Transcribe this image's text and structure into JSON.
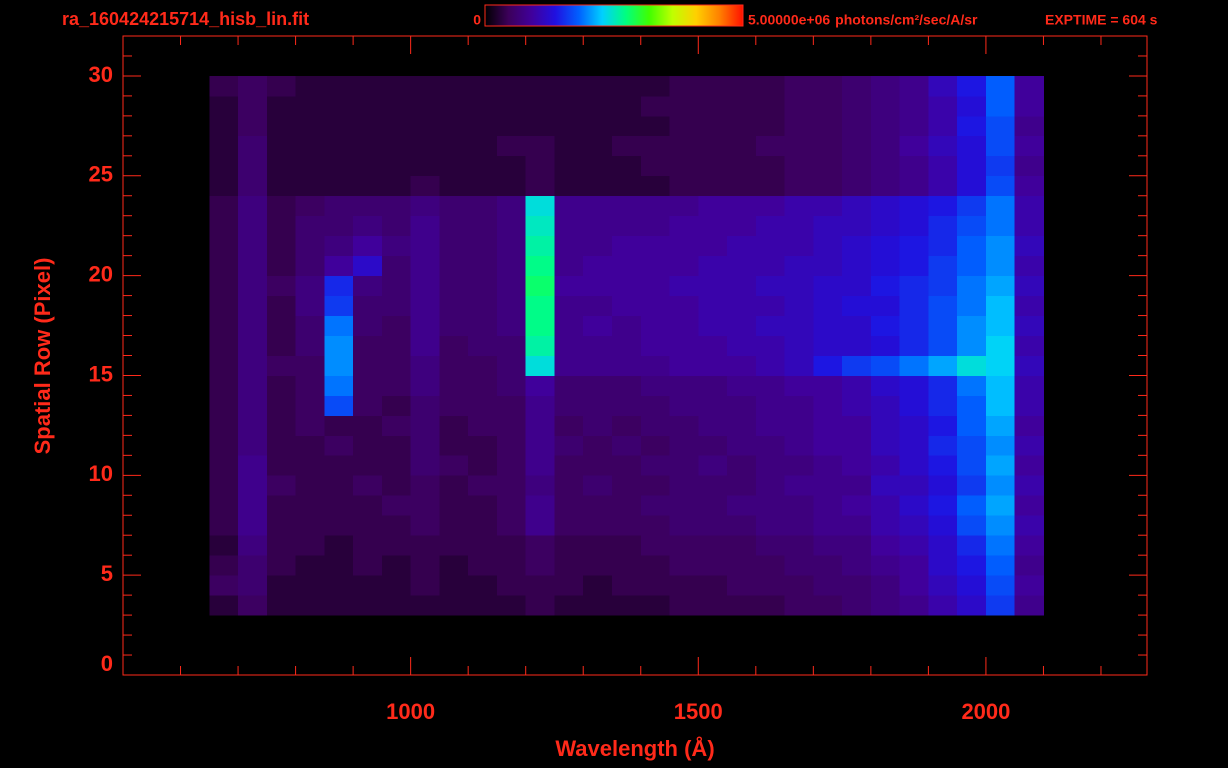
{
  "chart_data": {
    "type": "heatmap",
    "title": "ra_160424215714_hisb_lin.fit",
    "annotation": "EXPTIME = 604 s",
    "x_label": "Wavelength (Å)",
    "y_label": "Spatial Row (Pixel)",
    "colorbar_unit": "photons/cm²/sec/A/sr",
    "zlim": [
      0,
      5000000
    ],
    "colorbar_ticks": [
      0,
      {
        "value": 5000000,
        "label": "5.00000e+06"
      }
    ],
    "colorscale": [
      "#000000",
      "#3c005a",
      "#40009c",
      "#2010e0",
      "#0060ff",
      "#00d0ff",
      "#00ff80",
      "#40ff00",
      "#c0ff00",
      "#ffd000",
      "#ff8000",
      "#ff1000"
    ],
    "axis_color": "#ff2a1a",
    "xlim": [
      500,
      2280
    ],
    "ylim": [
      0,
      32
    ],
    "xticks": [
      1000,
      1500,
      2000
    ],
    "yticks": [
      0,
      5,
      10,
      15,
      20,
      25,
      30
    ],
    "xminorticks": [
      600,
      700,
      800,
      900,
      1100,
      1200,
      1300,
      1400,
      1600,
      1700,
      1800,
      1900,
      2100,
      2200
    ],
    "yminorticks": [
      1,
      2,
      3,
      4,
      6,
      7,
      8,
      9,
      11,
      12,
      13,
      14,
      16,
      17,
      18,
      19,
      21,
      22,
      23,
      24,
      26,
      27,
      28,
      29,
      31
    ],
    "x_bins": [
      650,
      700,
      750,
      800,
      850,
      900,
      950,
      1000,
      1050,
      1100,
      1150,
      1200,
      1250,
      1300,
      1350,
      1400,
      1450,
      1500,
      1550,
      1600,
      1650,
      1700,
      1750,
      1800,
      1850,
      1900,
      1950,
      2000,
      2050,
      2100
    ],
    "y_bins": [
      3,
      4,
      5,
      6,
      7,
      8,
      9,
      10,
      11,
      12,
      13,
      14,
      15,
      16,
      17,
      18,
      19,
      20,
      21,
      22,
      23,
      24,
      25,
      26,
      27,
      28,
      29,
      30
    ],
    "values": [
      [
        300000.0,
        500000.0,
        300000.0,
        300000.0,
        300000.0,
        300000.0,
        300000.0,
        300000.0,
        300000.0,
        300000.0,
        300000.0,
        400000.0,
        300000.0,
        300000.0,
        300000.0,
        300000.0,
        400000.0,
        400000.0,
        400000.0,
        400000.0,
        500000.0,
        500000.0,
        600000.0,
        700000.0,
        800000.0,
        1000000.0,
        1200000.0,
        1600000.0,
        800000.0
      ],
      [
        500000.0,
        600000.0,
        300000.0,
        300000.0,
        300000.0,
        300000.0,
        300000.0,
        400000.0,
        300000.0,
        300000.0,
        400000.0,
        400000.0,
        400000.0,
        300000.0,
        400000.0,
        400000.0,
        400000.0,
        400000.0,
        500000.0,
        500000.0,
        500000.0,
        600000.0,
        600000.0,
        700000.0,
        900000.0,
        1100000.0,
        1300000.0,
        1700000.0,
        900000.0
      ],
      [
        400000.0,
        600000.0,
        400000.0,
        300000.0,
        300000.0,
        400000.0,
        300000.0,
        400000.0,
        300000.0,
        400000.0,
        400000.0,
        500000.0,
        400000.0,
        400000.0,
        400000.0,
        400000.0,
        500000.0,
        500000.0,
        500000.0,
        500000.0,
        600000.0,
        600000.0,
        700000.0,
        800000.0,
        900000.0,
        1200000.0,
        1400000.0,
        1800000.0,
        800000.0
      ],
      [
        300000.0,
        700000.0,
        400000.0,
        400000.0,
        300000.0,
        400000.0,
        400000.0,
        400000.0,
        400000.0,
        400000.0,
        400000.0,
        500000.0,
        400000.0,
        400000.0,
        400000.0,
        500000.0,
        500000.0,
        500000.0,
        500000.0,
        600000.0,
        600000.0,
        700000.0,
        700000.0,
        900000.0,
        1000000.0,
        1200000.0,
        1500000.0,
        1900000.0,
        900000.0
      ],
      [
        400000.0,
        800000.0,
        400000.0,
        400000.0,
        400000.0,
        400000.0,
        400000.0,
        500000.0,
        400000.0,
        400000.0,
        500000.0,
        800000.0,
        500000.0,
        500000.0,
        500000.0,
        500000.0,
        600000.0,
        600000.0,
        600000.0,
        700000.0,
        700000.0,
        800000.0,
        800000.0,
        1000000.0,
        1100000.0,
        1300000.0,
        1700000.0,
        2000000.0,
        1000000.0
      ],
      [
        400000.0,
        800000.0,
        400000.0,
        400000.0,
        400000.0,
        400000.0,
        500000.0,
        500000.0,
        400000.0,
        400000.0,
        500000.0,
        800000.0,
        500000.0,
        500000.0,
        500000.0,
        600000.0,
        600000.0,
        600000.0,
        700000.0,
        700000.0,
        700000.0,
        800000.0,
        900000.0,
        1000000.0,
        1200000.0,
        1400000.0,
        1800000.0,
        2100000.0,
        900000.0
      ],
      [
        400000.0,
        800000.0,
        500000.0,
        400000.0,
        400000.0,
        500000.0,
        400000.0,
        500000.0,
        400000.0,
        500000.0,
        500000.0,
        700000.0,
        500000.0,
        600000.0,
        500000.0,
        500000.0,
        600000.0,
        600000.0,
        600000.0,
        700000.0,
        800000.0,
        800000.0,
        800000.0,
        1100000.0,
        1100000.0,
        1300000.0,
        1600000.0,
        2000000.0,
        1000000.0
      ],
      [
        400000.0,
        800000.0,
        400000.0,
        400000.0,
        400000.0,
        400000.0,
        400000.0,
        600000.0,
        500000.0,
        400000.0,
        500000.0,
        800000.0,
        500000.0,
        500000.0,
        500000.0,
        600000.0,
        600000.0,
        700000.0,
        600000.0,
        700000.0,
        700000.0,
        800000.0,
        900000.0,
        1000000.0,
        1200000.0,
        1400000.0,
        1700000.0,
        2100000.0,
        900000.0
      ],
      [
        400000.0,
        700000.0,
        400000.0,
        400000.0,
        500000.0,
        400000.0,
        400000.0,
        600000.0,
        400000.0,
        400000.0,
        500000.0,
        800000.0,
        600000.0,
        500000.0,
        600000.0,
        500000.0,
        600000.0,
        600000.0,
        700000.0,
        700000.0,
        800000.0,
        900000.0,
        900000.0,
        1100000.0,
        1200000.0,
        1500000.0,
        1700000.0,
        2000000.0,
        1000000.0
      ],
      [
        400000.0,
        700000.0,
        400000.0,
        500000.0,
        400000.0,
        400000.0,
        500000.0,
        600000.0,
        400000.0,
        500000.0,
        500000.0,
        800000.0,
        500000.0,
        600000.0,
        500000.0,
        600000.0,
        600000.0,
        700000.0,
        700000.0,
        800000.0,
        800000.0,
        900000.0,
        900000.0,
        1100000.0,
        1200000.0,
        1400000.0,
        1800000.0,
        2100000.0,
        900000.0
      ],
      [
        400000.0,
        700000.0,
        400000.0,
        500000.0,
        1700000.0,
        500000.0,
        400000.0,
        600000.0,
        500000.0,
        500000.0,
        500000.0,
        800000.0,
        600000.0,
        600000.0,
        600000.0,
        600000.0,
        700000.0,
        700000.0,
        700000.0,
        800000.0,
        800000.0,
        900000.0,
        1000000.0,
        1100000.0,
        1300000.0,
        1500000.0,
        1800000.0,
        2200000.0,
        1000000.0
      ],
      [
        400000.0,
        700000.0,
        400000.0,
        500000.0,
        1900000.0,
        500000.0,
        500000.0,
        700000.0,
        500000.0,
        500000.0,
        600000.0,
        900000.0,
        600000.0,
        600000.0,
        600000.0,
        700000.0,
        700000.0,
        700000.0,
        800000.0,
        800000.0,
        900000.0,
        900000.0,
        1000000.0,
        1200000.0,
        1300000.0,
        1500000.0,
        1900000.0,
        2200000.0,
        1000000.0
      ],
      [
        400000.0,
        700000.0,
        500000.0,
        500000.0,
        2000000.0,
        500000.0,
        500000.0,
        700000.0,
        500000.0,
        500000.0,
        600000.0,
        2400000.0,
        800000.0,
        800000.0,
        800000.0,
        800000.0,
        900000.0,
        900000.0,
        900000.0,
        1000000.0,
        1100000.0,
        1400000.0,
        1600000.0,
        1700000.0,
        1900000.0,
        2100000.0,
        2400000.0,
        2300000.0,
        1100000.0
      ],
      [
        400000.0,
        700000.0,
        400000.0,
        600000.0,
        2000000.0,
        500000.0,
        500000.0,
        800000.0,
        500000.0,
        600000.0,
        600000.0,
        2600000.0,
        800000.0,
        800000.0,
        800000.0,
        900000.0,
        900000.0,
        900000.0,
        1000000.0,
        1000000.0,
        1100000.0,
        1200000.0,
        1200000.0,
        1300000.0,
        1500000.0,
        1700000.0,
        2000000.0,
        2300000.0,
        1000000.0
      ],
      [
        400000.0,
        700000.0,
        400000.0,
        600000.0,
        1900000.0,
        600000.0,
        500000.0,
        800000.0,
        600000.0,
        600000.0,
        700000.0,
        2700000.0,
        800000.0,
        900000.0,
        800000.0,
        900000.0,
        900000.0,
        1000000.0,
        1000000.0,
        1100000.0,
        1100000.0,
        1200000.0,
        1200000.0,
        1400000.0,
        1500000.0,
        1700000.0,
        2000000.0,
        2200000.0,
        1100000.0
      ],
      [
        400000.0,
        700000.0,
        400000.0,
        700000.0,
        1600000.0,
        600000.0,
        600000.0,
        800000.0,
        600000.0,
        600000.0,
        700000.0,
        2700000.0,
        800000.0,
        800000.0,
        900000.0,
        900000.0,
        900000.0,
        1000000.0,
        1000000.0,
        1000000.0,
        1100000.0,
        1200000.0,
        1300000.0,
        1300000.0,
        1500000.0,
        1700000.0,
        1900000.0,
        2200000.0,
        1000000.0
      ],
      [
        400000.0,
        700000.0,
        500000.0,
        700000.0,
        1500000.0,
        700000.0,
        600000.0,
        800000.0,
        600000.0,
        600000.0,
        700000.0,
        2800000.0,
        900000.0,
        900000.0,
        900000.0,
        900000.0,
        1000000.0,
        1000000.0,
        1000000.0,
        1100000.0,
        1100000.0,
        1200000.0,
        1200000.0,
        1400000.0,
        1500000.0,
        1600000.0,
        1900000.0,
        2100000.0,
        1100000.0
      ],
      [
        400000.0,
        700000.0,
        400000.0,
        600000.0,
        900000.0,
        1200000.0,
        600000.0,
        800000.0,
        600000.0,
        600000.0,
        700000.0,
        2700000.0,
        800000.0,
        900000.0,
        900000.0,
        900000.0,
        900000.0,
        1000000.0,
        1000000.0,
        1000000.0,
        1100000.0,
        1100000.0,
        1200000.0,
        1300000.0,
        1400000.0,
        1600000.0,
        1800000.0,
        2000000.0,
        1000000.0
      ],
      [
        400000.0,
        700000.0,
        400000.0,
        600000.0,
        700000.0,
        900000.0,
        700000.0,
        800000.0,
        600000.0,
        600000.0,
        700000.0,
        2600000.0,
        800000.0,
        800000.0,
        900000.0,
        900000.0,
        900000.0,
        900000.0,
        1000000.0,
        1000000.0,
        1000000.0,
        1100000.0,
        1200000.0,
        1300000.0,
        1400000.0,
        1500000.0,
        1800000.0,
        2000000.0,
        1100000.0
      ],
      [
        400000.0,
        700000.0,
        400000.0,
        600000.0,
        600000.0,
        700000.0,
        600000.0,
        800000.0,
        600000.0,
        600000.0,
        700000.0,
        2500000.0,
        800000.0,
        800000.0,
        800000.0,
        800000.0,
        900000.0,
        900000.0,
        900000.0,
        1000000.0,
        1000000.0,
        1100000.0,
        1100000.0,
        1200000.0,
        1300000.0,
        1500000.0,
        1700000.0,
        1900000.0,
        1000000.0
      ],
      [
        400000.0,
        700000.0,
        400000.0,
        500000.0,
        600000.0,
        600000.0,
        600000.0,
        700000.0,
        600000.0,
        600000.0,
        700000.0,
        2400000.0,
        800000.0,
        800000.0,
        800000.0,
        800000.0,
        800000.0,
        900000.0,
        900000.0,
        900000.0,
        1000000.0,
        1000000.0,
        1100000.0,
        1200000.0,
        1300000.0,
        1400000.0,
        1600000.0,
        1900000.0,
        1000000.0
      ],
      [
        300000.0,
        600000.0,
        300000.0,
        300000.0,
        300000.0,
        300000.0,
        300000.0,
        400000.0,
        300000.0,
        300000.0,
        300000.0,
        400000.0,
        300000.0,
        300000.0,
        300000.0,
        300000.0,
        400000.0,
        400000.0,
        400000.0,
        400000.0,
        500000.0,
        500000.0,
        600000.0,
        700000.0,
        800000.0,
        1000000.0,
        1300000.0,
        1700000.0,
        900000.0
      ],
      [
        300000.0,
        600000.0,
        300000.0,
        300000.0,
        300000.0,
        300000.0,
        300000.0,
        300000.0,
        300000.0,
        300000.0,
        300000.0,
        400000.0,
        300000.0,
        300000.0,
        300000.0,
        400000.0,
        400000.0,
        400000.0,
        400000.0,
        400000.0,
        500000.0,
        500000.0,
        600000.0,
        700000.0,
        800000.0,
        1000000.0,
        1300000.0,
        1600000.0,
        800000.0
      ],
      [
        300000.0,
        600000.0,
        300000.0,
        300000.0,
        300000.0,
        300000.0,
        300000.0,
        300000.0,
        300000.0,
        300000.0,
        400000.0,
        400000.0,
        300000.0,
        300000.0,
        400000.0,
        400000.0,
        400000.0,
        400000.0,
        400000.0,
        500000.0,
        500000.0,
        500000.0,
        600000.0,
        700000.0,
        900000.0,
        1100000.0,
        1300000.0,
        1700000.0,
        900000.0
      ],
      [
        300000.0,
        500000.0,
        300000.0,
        300000.0,
        300000.0,
        300000.0,
        300000.0,
        300000.0,
        300000.0,
        300000.0,
        300000.0,
        300000.0,
        300000.0,
        300000.0,
        300000.0,
        300000.0,
        400000.0,
        400000.0,
        400000.0,
        400000.0,
        500000.0,
        500000.0,
        600000.0,
        700000.0,
        800000.0,
        1000000.0,
        1400000.0,
        1700000.0,
        800000.0
      ],
      [
        300000.0,
        500000.0,
        300000.0,
        300000.0,
        300000.0,
        300000.0,
        300000.0,
        300000.0,
        300000.0,
        300000.0,
        300000.0,
        300000.0,
        300000.0,
        300000.0,
        300000.0,
        400000.0,
        400000.0,
        400000.0,
        400000.0,
        400000.0,
        500000.0,
        500000.0,
        600000.0,
        700000.0,
        800000.0,
        1000000.0,
        1300000.0,
        1800000.0,
        900000.0
      ],
      [
        400000.0,
        500000.0,
        400000.0,
        300000.0,
        300000.0,
        300000.0,
        300000.0,
        300000.0,
        300000.0,
        300000.0,
        300000.0,
        300000.0,
        300000.0,
        300000.0,
        300000.0,
        300000.0,
        400000.0,
        400000.0,
        400000.0,
        400000.0,
        500000.0,
        500000.0,
        600000.0,
        700000.0,
        800000.0,
        1100000.0,
        1400000.0,
        1800000.0,
        900000.0
      ]
    ]
  }
}
